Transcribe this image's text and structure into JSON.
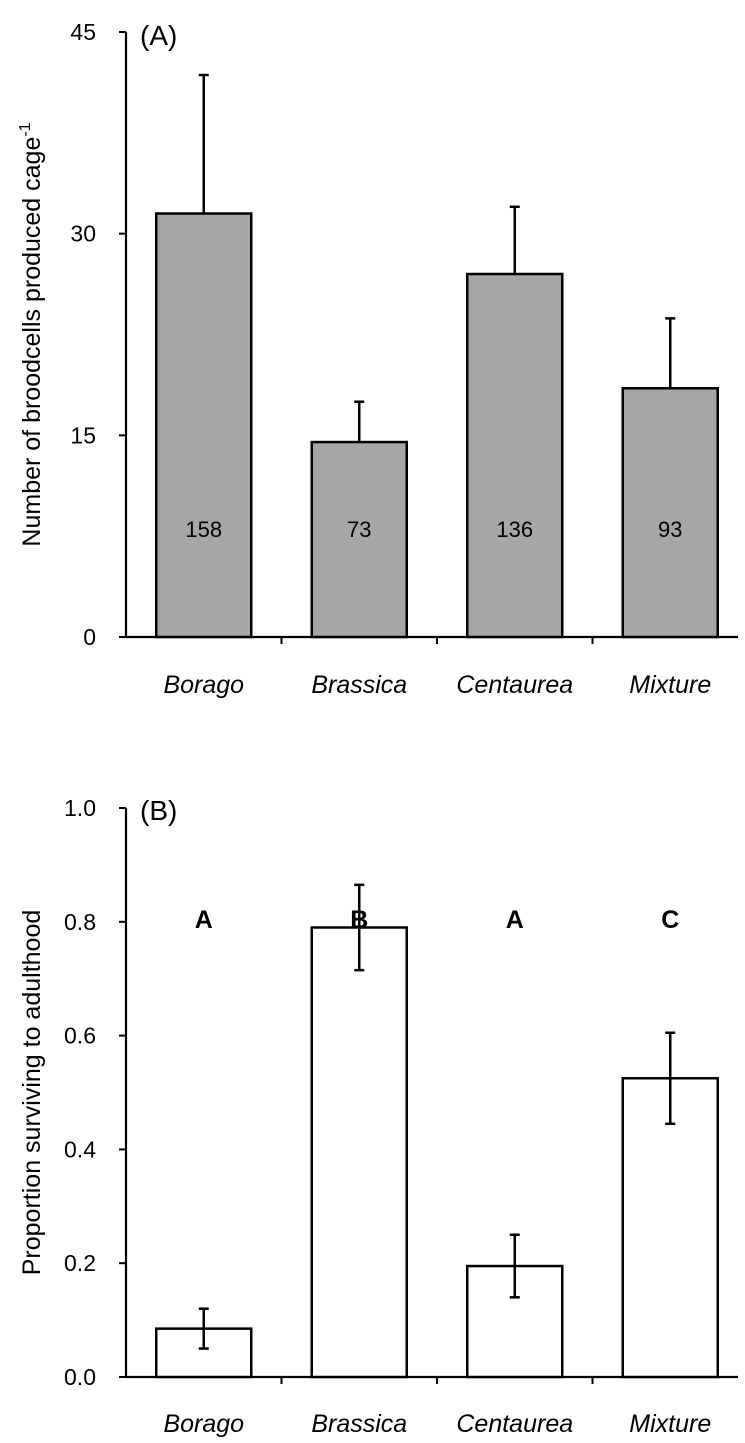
{
  "chart_data": [
    {
      "type": "bar",
      "panel_label": "(A)",
      "ylabel": "Number of broodcells produced cage",
      "ylabel_superscript": "-1",
      "categories": [
        "Borago",
        "Brassica",
        "Centaurea",
        "Mixture"
      ],
      "values": [
        31.5,
        14.5,
        27.0,
        18.5
      ],
      "errors": [
        10.3,
        3.0,
        5.0,
        5.2
      ],
      "bar_labels": [
        "158",
        "73",
        "136",
        "93"
      ],
      "yticks": [
        "0",
        "15",
        "30",
        "45"
      ],
      "ylim": [
        0,
        45
      ],
      "bar_color": "#a6a6a6",
      "grid": false
    },
    {
      "type": "bar",
      "panel_label": "(B)",
      "ylabel": "Proportion surviving to adulthood",
      "categories": [
        "Borago",
        "Brassica",
        "Centaurea",
        "Mixture"
      ],
      "values": [
        0.085,
        0.79,
        0.195,
        0.525
      ],
      "errors": [
        0.035,
        0.075,
        0.055,
        0.08
      ],
      "significance_letters": [
        "A",
        "B",
        "A",
        "C"
      ],
      "yticks": [
        "0.0",
        "0.2",
        "0.4",
        "0.6",
        "0.8",
        "1.0"
      ],
      "ylim": [
        0,
        1.0
      ],
      "bar_color": "#ffffff",
      "grid": false
    }
  ]
}
